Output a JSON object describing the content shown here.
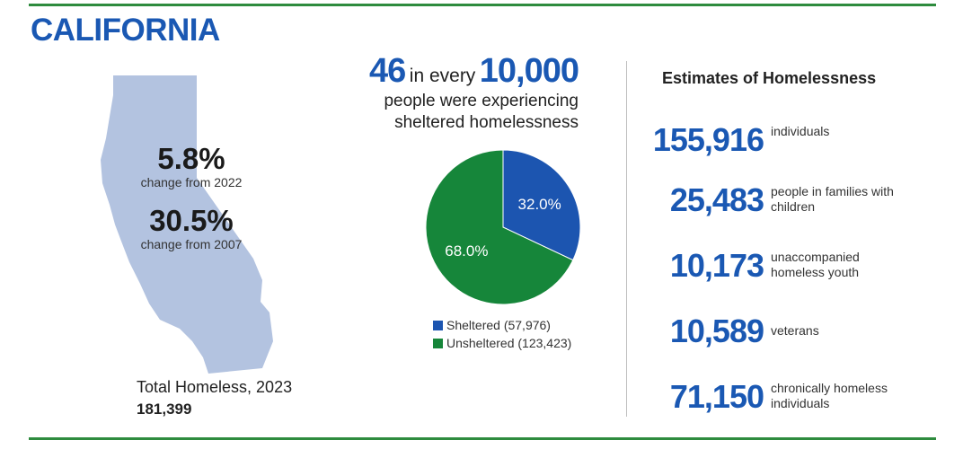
{
  "title": "CALIFORNIA",
  "map": {
    "stats": [
      {
        "value": "5.8%",
        "label": "change from 2022"
      },
      {
        "value": "30.5%",
        "label": "change from 2007"
      }
    ],
    "total_label": "Total Homeless, 2023",
    "total_value": "181,399"
  },
  "headline": {
    "number": "46",
    "mid": "in every",
    "denominator": "10,000",
    "line2": "people were experiencing",
    "line3": "sheltered homelessness"
  },
  "chart_data": {
    "type": "pie",
    "title": "",
    "slices": [
      {
        "label": "Sheltered (57,976)",
        "value": 32.0,
        "display": "32.0%",
        "color": "#1c55b0"
      },
      {
        "label": "Unsheltered (123,423)",
        "value": 68.0,
        "display": "68.0%",
        "color": "#16863a"
      }
    ],
    "legend_position": "bottom"
  },
  "estimates": {
    "title": "Estimates of Homelessness",
    "items": [
      {
        "value": "155,916",
        "desc": "individuals"
      },
      {
        "value": "25,483",
        "desc": "people in families with children"
      },
      {
        "value": "10,173",
        "desc": "unaccompanied homeless youth"
      },
      {
        "value": "10,589",
        "desc": "veterans"
      },
      {
        "value": "71,150",
        "desc": "chronically homeless individuals"
      }
    ]
  },
  "colors": {
    "accent": "#1a58b3",
    "rule": "#2e8b3e",
    "map_fill": "#b3c3e0"
  }
}
